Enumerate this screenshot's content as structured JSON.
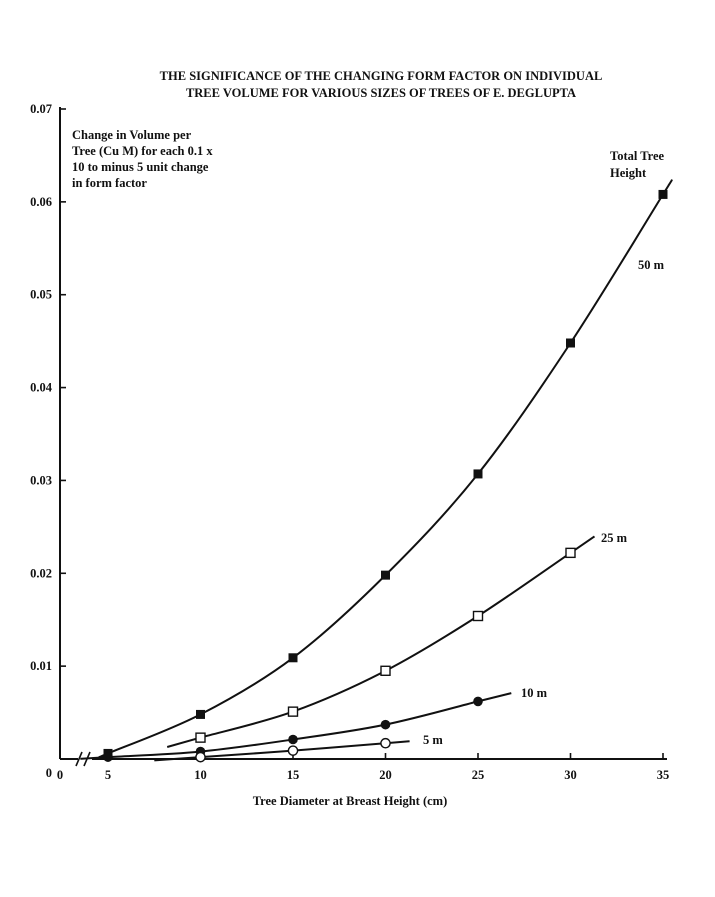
{
  "chart_data": {
    "type": "line",
    "title_lines": [
      "THE SIGNIFICANCE OF THE CHANGING FORM FACTOR ON INDIVIDUAL",
      "TREE VOLUME FOR VARIOUS SIZES OF TREES OF E. DEGLUPTA"
    ],
    "xlabel": "Tree Diameter at Breast Height (cm)",
    "ylabel_lines": [
      "Change in Volume per",
      "Tree (Cu M) for each 0.1 x",
      "10 to minus 5 unit change",
      "in form factor"
    ],
    "legend_title_lines": [
      "Total Tree",
      "Height"
    ],
    "x_origin_label": "0",
    "y_origin_label": "0",
    "x_ticks": [
      5,
      10,
      15,
      20,
      25,
      30,
      35
    ],
    "x_tick_labels": [
      "5",
      "10",
      "15",
      "20",
      "25",
      "30",
      "35"
    ],
    "y_ticks": [
      0.01,
      0.02,
      0.03,
      0.04,
      0.05,
      0.06,
      0.07
    ],
    "y_tick_labels": [
      "0.01",
      "0.02",
      "0.03",
      "0.04",
      "0.05",
      "0.06",
      "0.07"
    ],
    "xlim": [
      5,
      35
    ],
    "ylim": [
      0,
      0.07
    ],
    "x_axis_break": true,
    "grid": false,
    "series": [
      {
        "name": "50 m",
        "marker": "filled-square",
        "x": [
          5,
          10,
          15,
          20,
          25,
          30,
          35
        ],
        "values": [
          0.0006,
          0.0048,
          0.0109,
          0.0198,
          0.0307,
          0.0448,
          0.0608
        ]
      },
      {
        "name": "25 m",
        "marker": "open-square",
        "x": [
          10,
          15,
          20,
          25,
          30
        ],
        "values": [
          0.0023,
          0.0051,
          0.0095,
          0.0154,
          0.0222
        ]
      },
      {
        "name": "10 m",
        "marker": "filled-circle",
        "x": [
          5,
          10,
          15,
          20,
          25
        ],
        "values": [
          0.0002,
          0.0008,
          0.0021,
          0.0037,
          0.0062
        ]
      },
      {
        "name": "5 m",
        "marker": "open-circle",
        "x": [
          10,
          15,
          20
        ],
        "values": [
          0.0002,
          0.0009,
          0.0017
        ]
      }
    ]
  }
}
